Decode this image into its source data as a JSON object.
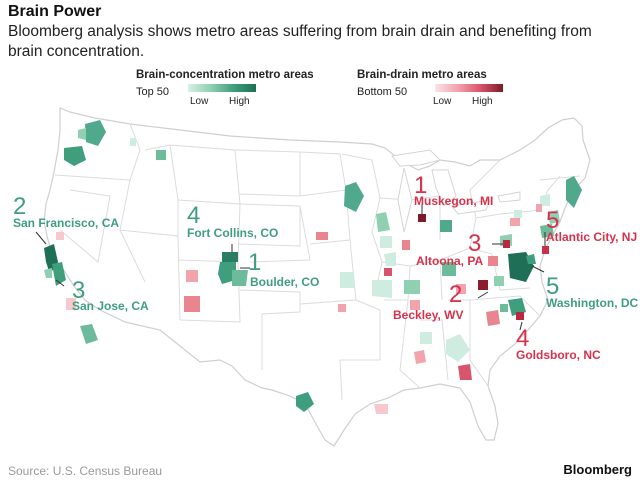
{
  "header": {
    "title": "Brain Power",
    "subtitle": "Bloomberg analysis shows metro areas suffering from brain drain and benefiting from brain concentration."
  },
  "legend": {
    "concentration": {
      "title": "Brain-concentration metro areas",
      "sub": "Top 50",
      "low": "Low",
      "high": "High"
    },
    "drain": {
      "title": "Brain-drain metro areas",
      "sub": "Bottom 50",
      "low": "Low",
      "high": "High"
    }
  },
  "colors": {
    "conc_accent": "#3f9e7b",
    "drain_accent": "#d8314b",
    "state_border": "#d9d9d9"
  },
  "callouts": {
    "concentration": [
      {
        "rank": "1",
        "label": "Boulder, CO"
      },
      {
        "rank": "2",
        "label": "San Francisco, CA"
      },
      {
        "rank": "3",
        "label": "San Jose, CA"
      },
      {
        "rank": "4",
        "label": "Fort Collins, CO"
      },
      {
        "rank": "5",
        "label": "Washington, DC"
      }
    ],
    "drain": [
      {
        "rank": "1",
        "label": "Muskegon, MI"
      },
      {
        "rank": "2",
        "label": "Beckley, WV"
      },
      {
        "rank": "3",
        "label": "Altoona, PA"
      },
      {
        "rank": "4",
        "label": "Goldsboro, NC"
      },
      {
        "rank": "5",
        "label": "Atlantic City, NJ"
      }
    ]
  },
  "footer": {
    "source": "Source: U.S. Census Bureau",
    "brand": "Bloomberg"
  }
}
